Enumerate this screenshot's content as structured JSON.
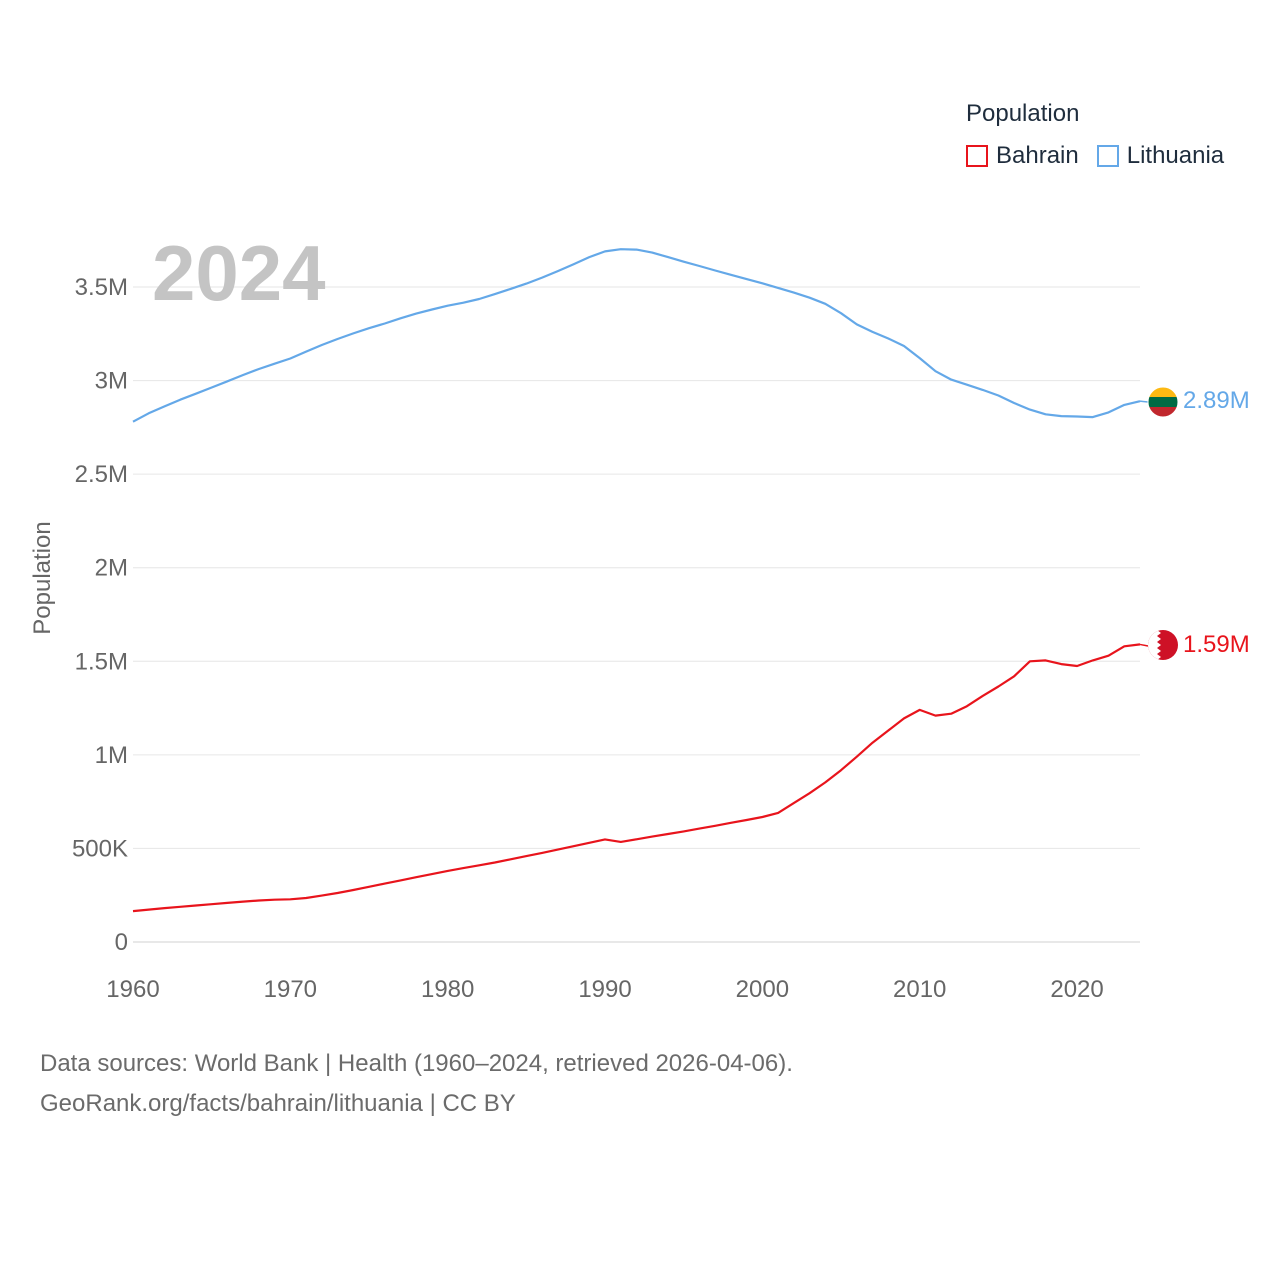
{
  "legend": {
    "title": "Population",
    "items": [
      {
        "label": "Bahrain",
        "color": "#e8141c"
      },
      {
        "label": "Lithuania",
        "color": "#64a8e8"
      }
    ]
  },
  "footer": {
    "line1": "Data sources: World Bank | Health (1960–2024, retrieved 2026-04-06).",
    "line2": "GeoRank.org/facts/bahrain/lithuania | CC BY"
  },
  "chart_data": {
    "type": "line",
    "title": "",
    "year_label": "2024",
    "xlabel": "",
    "ylabel": "Population",
    "xlim": [
      1960,
      2024
    ],
    "ylim": [
      0,
      3750000
    ],
    "x_ticks": [
      "1960",
      "1970",
      "1980",
      "1990",
      "2000",
      "2010",
      "2020"
    ],
    "y_ticks": [
      {
        "value": 0,
        "label": "0"
      },
      {
        "value": 500000,
        "label": "500K"
      },
      {
        "value": 1000000,
        "label": "1M"
      },
      {
        "value": 1500000,
        "label": "1.5M"
      },
      {
        "value": 2000000,
        "label": "2M"
      },
      {
        "value": 2500000,
        "label": "2.5M"
      },
      {
        "value": 3000000,
        "label": "3M"
      },
      {
        "value": 3500000,
        "label": "3.5M"
      }
    ],
    "x": [
      1960,
      1961,
      1962,
      1963,
      1964,
      1965,
      1966,
      1967,
      1968,
      1969,
      1970,
      1971,
      1972,
      1973,
      1974,
      1975,
      1976,
      1977,
      1978,
      1979,
      1980,
      1981,
      1982,
      1983,
      1984,
      1985,
      1986,
      1987,
      1988,
      1989,
      1990,
      1991,
      1992,
      1993,
      1994,
      1995,
      1996,
      1997,
      1998,
      1999,
      2000,
      2001,
      2002,
      2003,
      2004,
      2005,
      2006,
      2007,
      2008,
      2009,
      2010,
      2011,
      2012,
      2013,
      2014,
      2015,
      2016,
      2017,
      2018,
      2019,
      2020,
      2021,
      2022,
      2023,
      2024
    ],
    "series": [
      {
        "name": "Lithuania",
        "color": "#64a8e8",
        "end_label": "2.89M",
        "values": [
          2780000,
          2825000,
          2862000,
          2898000,
          2930000,
          2963000,
          2996000,
          3030000,
          3062000,
          3090000,
          3118000,
          3155000,
          3190000,
          3222000,
          3252000,
          3280000,
          3305000,
          3333000,
          3358000,
          3380000,
          3400000,
          3416000,
          3436000,
          3462000,
          3490000,
          3518000,
          3550000,
          3585000,
          3622000,
          3660000,
          3690000,
          3702000,
          3700000,
          3684000,
          3660000,
          3635000,
          3612000,
          3588000,
          3565000,
          3542000,
          3520000,
          3495000,
          3470000,
          3443000,
          3410000,
          3360000,
          3300000,
          3260000,
          3225000,
          3185000,
          3120000,
          3050000,
          3005000,
          2978000,
          2950000,
          2920000,
          2880000,
          2845000,
          2820000,
          2810000,
          2808000,
          2805000,
          2830000,
          2870000,
          2890000
        ]
      },
      {
        "name": "Bahrain",
        "color": "#e8141c",
        "end_label": "1.59M",
        "values": [
          165000,
          173000,
          181000,
          188000,
          195000,
          202000,
          209000,
          216000,
          222000,
          226000,
          228000,
          235000,
          248000,
          262000,
          278000,
          295000,
          312000,
          329000,
          346000,
          363000,
          380000,
          395000,
          410000,
          425000,
          442000,
          459000,
          476000,
          494000,
          512000,
          530000,
          548000,
          535000,
          549000,
          563000,
          577000,
          591000,
          606000,
          621000,
          637000,
          652000,
          668000,
          690000,
          742000,
          795000,
          853000,
          918000,
          990000,
          1065000,
          1130000,
          1195000,
          1240000,
          1210000,
          1220000,
          1260000,
          1315000,
          1365000,
          1420000,
          1500000,
          1505000,
          1485000,
          1475000,
          1505000,
          1530000,
          1580000,
          1590000
        ]
      }
    ]
  }
}
